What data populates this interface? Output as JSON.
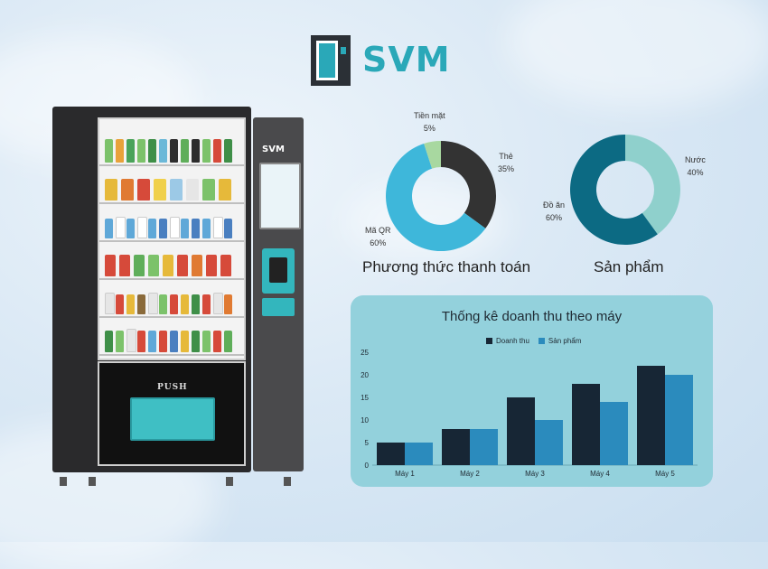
{
  "brand": {
    "name": "SVM"
  },
  "machine": {
    "push_label": "PUSH",
    "panel_logo": "SVM"
  },
  "colors": {
    "dark": "#1c2733",
    "teal_blue": "#3a8fc0",
    "cyan": "#3eb7da",
    "charcoal": "#333333",
    "sage": "#a8d8a0",
    "petrol": "#0c6a83",
    "mint": "#8fd0cc"
  },
  "chart_data": [
    {
      "type": "pie",
      "title": "Phương thức thanh toán",
      "slices": [
        {
          "name": "Thẻ",
          "value": 35,
          "label": "35%",
          "color": "#333333"
        },
        {
          "name": "Mã QR",
          "value": 60,
          "label": "60%",
          "color": "#3eb7da"
        },
        {
          "name": "Tiền mặt",
          "value": 5,
          "label": "5%",
          "color": "#a8d8a0"
        }
      ]
    },
    {
      "type": "pie",
      "title": "Sản phẩm",
      "slices": [
        {
          "name": "Nước",
          "value": 40,
          "label": "40%",
          "color": "#8fd0cc"
        },
        {
          "name": "Đồ ăn",
          "value": 60,
          "label": "60%",
          "color": "#0c6a83"
        }
      ]
    },
    {
      "type": "bar",
      "title": "Thống kê doanh thu theo máy",
      "categories": [
        "Máy 1",
        "Máy 2",
        "Máy 3",
        "Máy 4",
        "Máy 5"
      ],
      "series": [
        {
          "name": "Doanh thu",
          "values": [
            5,
            8,
            15,
            18,
            22
          ],
          "color": "#172635"
        },
        {
          "name": "Sản phẩm",
          "values": [
            5,
            8,
            10,
            14,
            20
          ],
          "color": "#2b8bbd"
        }
      ],
      "ylim": [
        0,
        25
      ],
      "yticks": [
        0,
        5,
        10,
        15,
        20,
        25
      ],
      "legend": "top-center",
      "grid": false
    }
  ]
}
